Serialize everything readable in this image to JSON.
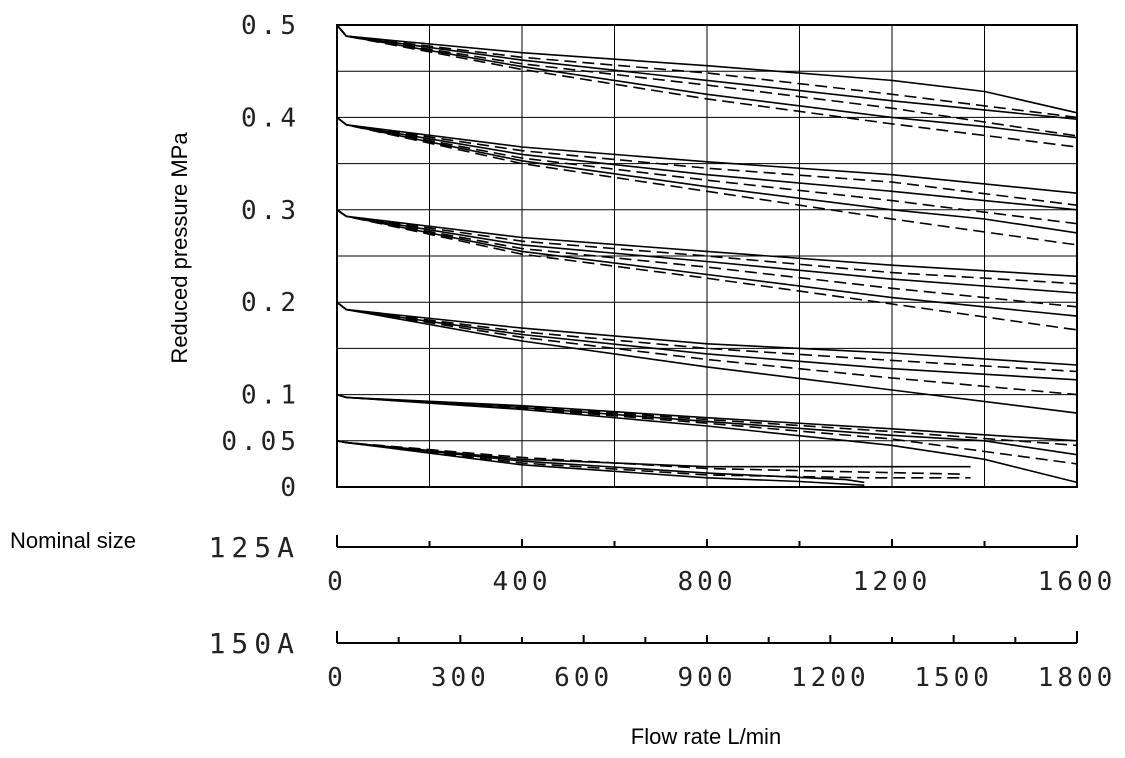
{
  "chart_data": {
    "type": "line",
    "ylabel": "Reduced pressure   MPa",
    "xlabel": "Flow rate L/min",
    "nominal_size_label": "Nominal size",
    "ylim": [
      0,
      0.5
    ],
    "y_ticks": [
      {
        "value": 0,
        "label": "0"
      },
      {
        "value": 0.05,
        "label": "0.05"
      },
      {
        "value": 0.1,
        "label": "0.1"
      },
      {
        "value": 0.2,
        "label": "0.2"
      },
      {
        "value": 0.3,
        "label": "0.3"
      },
      {
        "value": 0.4,
        "label": "0.4"
      },
      {
        "value": 0.5,
        "label": "0.5"
      }
    ],
    "grid_y_values": [
      0.05,
      0.1,
      0.15,
      0.2,
      0.25,
      0.3,
      0.35,
      0.4,
      0.45
    ],
    "grid": true,
    "x_axes": [
      {
        "size": "125A",
        "xlim": [
          0,
          1600
        ],
        "ticks": [
          0,
          400,
          800,
          1200,
          1600
        ],
        "minor_step": 200
      },
      {
        "size": "150A",
        "xlim": [
          0,
          1800
        ],
        "ticks": [
          0,
          300,
          600,
          900,
          1200,
          1500,
          1800
        ],
        "minor_step": 150
      }
    ],
    "curves": [
      {
        "start": 0.5,
        "style": "solid",
        "points": [
          [
            0,
            0.5
          ],
          [
            20,
            0.488
          ],
          [
            400,
            0.47
          ],
          [
            800,
            0.456
          ],
          [
            1200,
            0.44
          ],
          [
            1400,
            0.428
          ],
          [
            1600,
            0.405
          ]
        ]
      },
      {
        "start": 0.5,
        "style": "dashed",
        "points": [
          [
            0,
            0.5
          ],
          [
            20,
            0.488
          ],
          [
            400,
            0.465
          ],
          [
            800,
            0.448
          ],
          [
            1200,
            0.425
          ],
          [
            1600,
            0.4
          ]
        ]
      },
      {
        "start": 0.5,
        "style": "solid",
        "points": [
          [
            0,
            0.5
          ],
          [
            20,
            0.488
          ],
          [
            400,
            0.462
          ],
          [
            800,
            0.44
          ],
          [
            1200,
            0.418
          ],
          [
            1600,
            0.398
          ]
        ]
      },
      {
        "start": 0.5,
        "style": "dashed",
        "points": [
          [
            0,
            0.5
          ],
          [
            20,
            0.488
          ],
          [
            400,
            0.458
          ],
          [
            800,
            0.435
          ],
          [
            1200,
            0.41
          ],
          [
            1600,
            0.38
          ]
        ]
      },
      {
        "start": 0.5,
        "style": "solid",
        "points": [
          [
            0,
            0.5
          ],
          [
            20,
            0.488
          ],
          [
            400,
            0.455
          ],
          [
            800,
            0.425
          ],
          [
            1200,
            0.4
          ],
          [
            1400,
            0.39
          ],
          [
            1600,
            0.378
          ]
        ]
      },
      {
        "start": 0.5,
        "style": "dashed",
        "points": [
          [
            0,
            0.5
          ],
          [
            20,
            0.488
          ],
          [
            400,
            0.452
          ],
          [
            800,
            0.42
          ],
          [
            1200,
            0.393
          ],
          [
            1600,
            0.368
          ]
        ]
      },
      {
        "start": 0.4,
        "style": "solid",
        "points": [
          [
            0,
            0.4
          ],
          [
            20,
            0.392
          ],
          [
            400,
            0.368
          ],
          [
            800,
            0.352
          ],
          [
            1200,
            0.338
          ],
          [
            1600,
            0.318
          ]
        ]
      },
      {
        "start": 0.4,
        "style": "dashed",
        "points": [
          [
            0,
            0.4
          ],
          [
            20,
            0.392
          ],
          [
            400,
            0.364
          ],
          [
            800,
            0.345
          ],
          [
            1200,
            0.33
          ],
          [
            1600,
            0.305
          ]
        ]
      },
      {
        "start": 0.4,
        "style": "solid",
        "points": [
          [
            0,
            0.4
          ],
          [
            20,
            0.392
          ],
          [
            400,
            0.36
          ],
          [
            800,
            0.338
          ],
          [
            1200,
            0.32
          ],
          [
            1600,
            0.3
          ]
        ]
      },
      {
        "start": 0.4,
        "style": "dashed",
        "points": [
          [
            0,
            0.4
          ],
          [
            20,
            0.392
          ],
          [
            400,
            0.356
          ],
          [
            800,
            0.332
          ],
          [
            1200,
            0.31
          ],
          [
            1600,
            0.285
          ]
        ]
      },
      {
        "start": 0.4,
        "style": "solid",
        "points": [
          [
            0,
            0.4
          ],
          [
            20,
            0.392
          ],
          [
            400,
            0.353
          ],
          [
            800,
            0.325
          ],
          [
            1200,
            0.3
          ],
          [
            1400,
            0.29
          ],
          [
            1600,
            0.275
          ]
        ]
      },
      {
        "start": 0.4,
        "style": "dashed",
        "points": [
          [
            0,
            0.4
          ],
          [
            20,
            0.392
          ],
          [
            400,
            0.35
          ],
          [
            800,
            0.32
          ],
          [
            1200,
            0.29
          ],
          [
            1600,
            0.262
          ]
        ]
      },
      {
        "start": 0.3,
        "style": "solid",
        "points": [
          [
            0,
            0.3
          ],
          [
            20,
            0.293
          ],
          [
            400,
            0.27
          ],
          [
            800,
            0.255
          ],
          [
            1200,
            0.24
          ],
          [
            1600,
            0.228
          ]
        ]
      },
      {
        "start": 0.3,
        "style": "dashed",
        "points": [
          [
            0,
            0.3
          ],
          [
            20,
            0.293
          ],
          [
            400,
            0.266
          ],
          [
            800,
            0.25
          ],
          [
            1200,
            0.232
          ],
          [
            1600,
            0.22
          ]
        ]
      },
      {
        "start": 0.3,
        "style": "solid",
        "points": [
          [
            0,
            0.3
          ],
          [
            20,
            0.293
          ],
          [
            400,
            0.262
          ],
          [
            800,
            0.244
          ],
          [
            1200,
            0.225
          ],
          [
            1600,
            0.21
          ]
        ]
      },
      {
        "start": 0.3,
        "style": "dashed",
        "points": [
          [
            0,
            0.3
          ],
          [
            20,
            0.293
          ],
          [
            400,
            0.258
          ],
          [
            800,
            0.238
          ],
          [
            1200,
            0.215
          ],
          [
            1600,
            0.195
          ]
        ]
      },
      {
        "start": 0.3,
        "style": "solid",
        "points": [
          [
            0,
            0.3
          ],
          [
            20,
            0.293
          ],
          [
            400,
            0.255
          ],
          [
            800,
            0.23
          ],
          [
            1200,
            0.205
          ],
          [
            1600,
            0.185
          ]
        ]
      },
      {
        "start": 0.3,
        "style": "dashed",
        "points": [
          [
            0,
            0.3
          ],
          [
            20,
            0.293
          ],
          [
            400,
            0.252
          ],
          [
            800,
            0.226
          ],
          [
            1200,
            0.198
          ],
          [
            1600,
            0.17
          ]
        ]
      },
      {
        "start": 0.2,
        "style": "solid",
        "points": [
          [
            0,
            0.2
          ],
          [
            20,
            0.192
          ],
          [
            400,
            0.172
          ],
          [
            800,
            0.155
          ],
          [
            1200,
            0.145
          ],
          [
            1600,
            0.132
          ]
        ]
      },
      {
        "start": 0.2,
        "style": "dashed",
        "points": [
          [
            0,
            0.2
          ],
          [
            20,
            0.192
          ],
          [
            400,
            0.168
          ],
          [
            800,
            0.15
          ],
          [
            1200,
            0.137
          ],
          [
            1600,
            0.125
          ]
        ]
      },
      {
        "start": 0.2,
        "style": "solid",
        "points": [
          [
            0,
            0.2
          ],
          [
            20,
            0.192
          ],
          [
            400,
            0.165
          ],
          [
            800,
            0.144
          ],
          [
            1200,
            0.128
          ],
          [
            1600,
            0.116
          ]
        ]
      },
      {
        "start": 0.2,
        "style": "dashed",
        "points": [
          [
            0,
            0.2
          ],
          [
            20,
            0.192
          ],
          [
            400,
            0.162
          ],
          [
            800,
            0.138
          ],
          [
            1200,
            0.118
          ],
          [
            1600,
            0.1
          ]
        ]
      },
      {
        "start": 0.2,
        "style": "solid",
        "points": [
          [
            0,
            0.2
          ],
          [
            20,
            0.192
          ],
          [
            400,
            0.158
          ],
          [
            800,
            0.13
          ],
          [
            1200,
            0.105
          ],
          [
            1600,
            0.08
          ]
        ]
      },
      {
        "start": 0.1,
        "style": "solid",
        "points": [
          [
            0,
            0.1
          ],
          [
            20,
            0.097
          ],
          [
            400,
            0.088
          ],
          [
            800,
            0.075
          ],
          [
            1200,
            0.063
          ],
          [
            1600,
            0.05
          ]
        ]
      },
      {
        "start": 0.1,
        "style": "dashed",
        "points": [
          [
            0,
            0.1
          ],
          [
            20,
            0.097
          ],
          [
            400,
            0.087
          ],
          [
            800,
            0.073
          ],
          [
            1200,
            0.06
          ],
          [
            1600,
            0.045
          ]
        ]
      },
      {
        "start": 0.1,
        "style": "solid",
        "points": [
          [
            0,
            0.1
          ],
          [
            20,
            0.097
          ],
          [
            400,
            0.086
          ],
          [
            800,
            0.071
          ],
          [
            1200,
            0.056
          ],
          [
            1400,
            0.05
          ],
          [
            1600,
            0.035
          ]
        ]
      },
      {
        "start": 0.1,
        "style": "dashed",
        "points": [
          [
            0,
            0.1
          ],
          [
            20,
            0.097
          ],
          [
            400,
            0.085
          ],
          [
            800,
            0.069
          ],
          [
            1200,
            0.052
          ],
          [
            1600,
            0.025
          ]
        ]
      },
      {
        "start": 0.1,
        "style": "solid",
        "points": [
          [
            0,
            0.1
          ],
          [
            20,
            0.097
          ],
          [
            400,
            0.084
          ],
          [
            800,
            0.066
          ],
          [
            1200,
            0.045
          ],
          [
            1400,
            0.03
          ],
          [
            1600,
            0.005
          ]
        ]
      },
      {
        "start": 0.05,
        "style": "solid",
        "points": [
          [
            0,
            0.05
          ],
          [
            20,
            0.048
          ],
          [
            400,
            0.03
          ],
          [
            800,
            0.022
          ],
          [
            1150,
            0.022
          ],
          [
            1370,
            0.022
          ]
        ]
      },
      {
        "start": 0.05,
        "style": "dashed",
        "points": [
          [
            0,
            0.05
          ],
          [
            20,
            0.048
          ],
          [
            400,
            0.032
          ],
          [
            800,
            0.02
          ],
          [
            1150,
            0.016
          ],
          [
            1350,
            0.014
          ]
        ]
      },
      {
        "start": 0.05,
        "style": "solid",
        "points": [
          [
            0,
            0.05
          ],
          [
            20,
            0.048
          ],
          [
            400,
            0.028
          ],
          [
            800,
            0.015
          ],
          [
            1100,
            0.008
          ],
          [
            1140,
            0.005
          ]
        ]
      },
      {
        "start": 0.05,
        "style": "dashed",
        "points": [
          [
            0,
            0.05
          ],
          [
            20,
            0.048
          ],
          [
            400,
            0.026
          ],
          [
            800,
            0.013
          ],
          [
            1150,
            0.01
          ],
          [
            1370,
            0.01
          ]
        ]
      },
      {
        "start": 0.05,
        "style": "solid",
        "points": [
          [
            0,
            0.05
          ],
          [
            20,
            0.048
          ],
          [
            400,
            0.024
          ],
          [
            800,
            0.01
          ],
          [
            1000,
            0.006
          ],
          [
            1140,
            0.002
          ]
        ]
      }
    ]
  }
}
